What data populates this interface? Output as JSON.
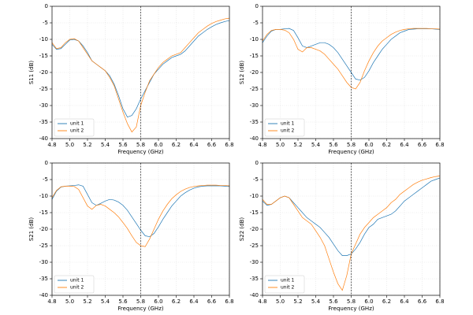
{
  "chart_data": [
    {
      "type": "line",
      "x_label": "Frequency (GHz)",
      "y_label": "S11 (dB)",
      "x": [
        4.8,
        4.85,
        4.9,
        4.95,
        5.0,
        5.05,
        5.1,
        5.15,
        5.2,
        5.25,
        5.3,
        5.35,
        5.4,
        5.45,
        5.5,
        5.55,
        5.6,
        5.65,
        5.7,
        5.75,
        5.8,
        5.85,
        5.9,
        5.95,
        6.0,
        6.05,
        6.1,
        6.15,
        6.2,
        6.25,
        6.3,
        6.35,
        6.4,
        6.45,
        6.5,
        6.55,
        6.6,
        6.65,
        6.7,
        6.75,
        6.8
      ],
      "series": [
        {
          "name": "unit 1",
          "color": "#1f77b4",
          "values": [
            -11.5,
            -13,
            -12.8,
            -11.5,
            -10.2,
            -10,
            -10.5,
            -12,
            -14,
            -16.5,
            -17.5,
            -18.5,
            -19.5,
            -21,
            -23.5,
            -27,
            -31,
            -33.5,
            -33,
            -31,
            -28,
            -25.5,
            -23,
            -20.5,
            -19,
            -17.5,
            -16.5,
            -15.5,
            -15,
            -14.5,
            -13.5,
            -12,
            -10.5,
            -9,
            -8,
            -7,
            -6.2,
            -5.5,
            -5,
            -4.6,
            -4.3
          ]
        },
        {
          "name": "unit 2",
          "color": "#ff7f0e",
          "values": [
            -11,
            -12.8,
            -12.5,
            -11,
            -10,
            -9.8,
            -10.5,
            -12.5,
            -14.5,
            -16.5,
            -17.5,
            -18.5,
            -19.5,
            -21.5,
            -24,
            -28,
            -32,
            -35.5,
            -38,
            -36.5,
            -30,
            -26,
            -22.5,
            -20.5,
            -18.5,
            -17,
            -16,
            -15,
            -14.5,
            -14,
            -12.5,
            -11,
            -9.5,
            -8,
            -7,
            -6,
            -5.2,
            -4.6,
            -4.2,
            -3.8,
            -3.6
          ]
        }
      ],
      "xlim": [
        4.8,
        6.8
      ],
      "ylim": [
        -40,
        0
      ],
      "xticks": [
        4.8,
        {
          "value": 5,
          "label": "5.0"
        },
        5.2,
        5.4,
        5.6,
        5.8,
        {
          "value": 6,
          "label": "6.0"
        },
        6.2,
        6.4,
        6.6,
        6.8
      ],
      "yticks": [
        -40,
        -35,
        -30,
        -25,
        -20,
        -15,
        -10,
        -5,
        0
      ],
      "grid": true,
      "vline": 5.8,
      "legend": "lower left"
    },
    {
      "type": "line",
      "x_label": "Frequency (GHz)",
      "y_label": "S12 (dB)",
      "x": [
        4.8,
        4.85,
        4.9,
        4.95,
        5.0,
        5.05,
        5.1,
        5.15,
        5.2,
        5.25,
        5.3,
        5.35,
        5.4,
        5.45,
        5.5,
        5.55,
        5.6,
        5.65,
        5.7,
        5.75,
        5.8,
        5.85,
        5.9,
        5.95,
        6.0,
        6.05,
        6.1,
        6.15,
        6.2,
        6.25,
        6.3,
        6.35,
        6.4,
        6.45,
        6.5,
        6.55,
        6.6,
        6.65,
        6.7,
        6.75,
        6.8
      ],
      "series": [
        {
          "name": "unit 1",
          "color": "#1f77b4",
          "values": [
            -11,
            -9,
            -7.5,
            -7,
            -7,
            -6.8,
            -6.7,
            -7.3,
            -9.5,
            -12,
            -12.5,
            -12,
            -11.5,
            -11,
            -11,
            -11.5,
            -12.5,
            -14,
            -16,
            -18,
            -20,
            -22,
            -22.3,
            -21.5,
            -19.5,
            -17,
            -15,
            -13,
            -11.5,
            -10,
            -9,
            -8,
            -7.5,
            -7,
            -6.9,
            -6.8,
            -6.8,
            -6.8,
            -6.8,
            -6.9,
            -7
          ]
        },
        {
          "name": "unit 2",
          "color": "#ff7f0e",
          "values": [
            -10.5,
            -8.5,
            -7.3,
            -7,
            -7,
            -7.2,
            -8,
            -10,
            -13,
            -13.8,
            -12.5,
            -12.5,
            -13,
            -13.5,
            -14.5,
            -16,
            -17.5,
            -19,
            -21,
            -23,
            -24.5,
            -25,
            -23,
            -19.5,
            -16.5,
            -14,
            -12,
            -10.5,
            -9.5,
            -8.5,
            -7.8,
            -7.3,
            -7,
            -6.8,
            -6.7,
            -6.7,
            -6.7,
            -6.7,
            -6.8,
            -6.8,
            -6.9
          ]
        }
      ],
      "xlim": [
        4.8,
        6.8
      ],
      "ylim": [
        -40,
        0
      ],
      "xticks": [
        4.8,
        {
          "value": 5,
          "label": "5.0"
        },
        5.2,
        5.4,
        5.6,
        5.8,
        {
          "value": 6,
          "label": "6.0"
        },
        6.2,
        6.4,
        6.6,
        6.8
      ],
      "yticks": [
        -40,
        -35,
        -30,
        -25,
        -20,
        -15,
        -10,
        -5,
        0
      ],
      "grid": true,
      "vline": 5.8,
      "legend": "lower left"
    },
    {
      "type": "line",
      "x_label": "Frequency (GHz)",
      "y_label": "S21 (dB)",
      "x": [
        4.8,
        4.85,
        4.9,
        4.95,
        5.0,
        5.05,
        5.1,
        5.15,
        5.2,
        5.25,
        5.3,
        5.35,
        5.4,
        5.45,
        5.5,
        5.55,
        5.6,
        5.65,
        5.7,
        5.75,
        5.8,
        5.85,
        5.9,
        5.95,
        6.0,
        6.05,
        6.1,
        6.15,
        6.2,
        6.25,
        6.3,
        6.35,
        6.4,
        6.45,
        6.5,
        6.55,
        6.6,
        6.65,
        6.7,
        6.75,
        6.8
      ],
      "series": [
        {
          "name": "unit 1",
          "color": "#1f77b4",
          "values": [
            -11,
            -8.5,
            -7.3,
            -7,
            -6.9,
            -6.8,
            -6.6,
            -7,
            -9.5,
            -12,
            -12.8,
            -12.2,
            -11.5,
            -11,
            -11.2,
            -11.8,
            -12.8,
            -14.3,
            -16.3,
            -18.3,
            -20.3,
            -22,
            -22.3,
            -21.3,
            -19.3,
            -17,
            -15,
            -13,
            -11.5,
            -10,
            -9,
            -8.2,
            -7.6,
            -7.2,
            -7,
            -6.9,
            -6.9,
            -6.9,
            -6.9,
            -7,
            -7.1
          ]
        },
        {
          "name": "unit 2",
          "color": "#ff7f0e",
          "values": [
            -10.5,
            -8.3,
            -7.2,
            -7,
            -7,
            -7.1,
            -8,
            -10.5,
            -13,
            -14,
            -12.8,
            -12.5,
            -13,
            -14,
            -15,
            -16.3,
            -18,
            -19.8,
            -22,
            -24,
            -25,
            -25.3,
            -23,
            -20,
            -17,
            -14.5,
            -12.5,
            -10.8,
            -9.6,
            -8.6,
            -7.9,
            -7.4,
            -7.1,
            -6.9,
            -6.8,
            -6.7,
            -6.7,
            -6.7,
            -6.8,
            -6.8,
            -6.9
          ]
        }
      ],
      "xlim": [
        4.8,
        6.8
      ],
      "ylim": [
        -40,
        0
      ],
      "xticks": [
        4.8,
        {
          "value": 5,
          "label": "5.0"
        },
        5.2,
        5.4,
        5.6,
        5.8,
        {
          "value": 6,
          "label": "6.0"
        },
        6.2,
        6.4,
        6.6,
        6.8
      ],
      "yticks": [
        -40,
        -35,
        -30,
        -25,
        -20,
        -15,
        -10,
        -5,
        0
      ],
      "grid": true,
      "vline": 5.8,
      "legend": "lower left"
    },
    {
      "type": "line",
      "x_label": "Frequency (GHz)",
      "y_label": "S22 (dB)",
      "x": [
        4.8,
        4.85,
        4.9,
        4.95,
        5.0,
        5.05,
        5.1,
        5.15,
        5.2,
        5.25,
        5.3,
        5.35,
        5.4,
        5.45,
        5.5,
        5.55,
        5.6,
        5.65,
        5.7,
        5.75,
        5.8,
        5.85,
        5.9,
        5.95,
        6.0,
        6.05,
        6.1,
        6.15,
        6.2,
        6.25,
        6.3,
        6.35,
        6.4,
        6.45,
        6.5,
        6.55,
        6.6,
        6.65,
        6.7,
        6.75,
        6.8
      ],
      "series": [
        {
          "name": "unit 1",
          "color": "#1f77b4",
          "values": [
            -11.5,
            -12.8,
            -12.5,
            -11.5,
            -10.5,
            -10,
            -10.5,
            -12,
            -13.5,
            -15,
            -16.5,
            -17.5,
            -18.5,
            -19.5,
            -21,
            -22.5,
            -24.5,
            -26.5,
            -28,
            -28,
            -27.5,
            -26,
            -24,
            -21.5,
            -19.5,
            -18.5,
            -17,
            -16.5,
            -16,
            -15.5,
            -14.5,
            -13,
            -11.5,
            -10.5,
            -9.5,
            -8.5,
            -7.5,
            -6.5,
            -5.5,
            -5,
            -4.5
          ]
        },
        {
          "name": "unit 2",
          "color": "#ff7f0e",
          "values": [
            -11,
            -12.5,
            -12.5,
            -11.5,
            -10.5,
            -10,
            -10.5,
            -12.5,
            -14.5,
            -16.5,
            -17.5,
            -18.5,
            -20.5,
            -22.5,
            -25,
            -29,
            -33,
            -36.5,
            -38.5,
            -34,
            -27.5,
            -24.5,
            -21.5,
            -19.5,
            -18,
            -16.5,
            -15.5,
            -14.5,
            -13.5,
            -12,
            -11,
            -9.5,
            -8.5,
            -7.5,
            -6.5,
            -5.8,
            -5.2,
            -4.8,
            -4.4,
            -4.1,
            -3.9
          ]
        }
      ],
      "xlim": [
        4.8,
        6.8
      ],
      "ylim": [
        -40,
        0
      ],
      "xticks": [
        4.8,
        {
          "value": 5,
          "label": "5.0"
        },
        5.2,
        5.4,
        5.6,
        5.8,
        {
          "value": 6,
          "label": "6.0"
        },
        6.2,
        6.4,
        6.6,
        6.8
      ],
      "yticks": [
        -40,
        -35,
        -30,
        -25,
        -20,
        -15,
        -10,
        -5,
        0
      ],
      "grid": true,
      "vline": 5.8,
      "legend": "lower left"
    }
  ]
}
